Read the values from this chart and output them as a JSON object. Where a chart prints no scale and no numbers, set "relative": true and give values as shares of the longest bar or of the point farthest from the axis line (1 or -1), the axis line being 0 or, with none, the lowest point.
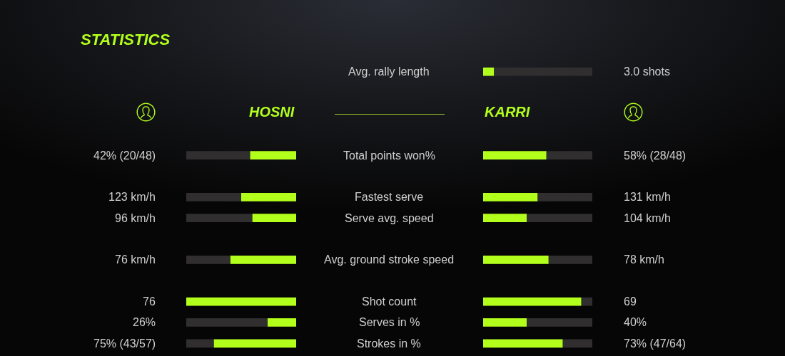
{
  "chart_data": [
    {
      "type": "bar",
      "orientation": "horizontal",
      "stacked": true,
      "relative": true,
      "title": "STATISTICS",
      "tick_labels": "y",
      "categories": [
        "Avg. rally length",
        null,
        null,
        null,
        "Total points won%",
        null,
        "Fastest serve",
        "Serve avg. speed",
        null,
        "Avg. ground stroke speed",
        null,
        "Shot count",
        "Serves in %",
        "Strokes in %"
      ],
      "series": [
        {
          "name": "HOSNI",
          "color": "#b2ff1c",
          "values": [
            null,
            null,
            null,
            null,
            -0.42,
            null,
            -0.5,
            -0.4,
            null,
            -0.6,
            null,
            -1,
            -0.26,
            -0.75
          ]
        },
        {
          "color": "#302e2e",
          "values": [
            null,
            null,
            null,
            null,
            -0.58,
            null,
            -0.5,
            -0.6,
            null,
            -0.4,
            null,
            null,
            -0.74,
            -0.25
          ]
        }
      ],
      "annotations": [
        "42% (20/48)",
        "123 km/h",
        "96 km/h",
        "76 km/h",
        "76",
        "26%",
        "75% (43/57)"
      ]
    },
    {
      "type": "bar",
      "orientation": "horizontal",
      "stacked": true,
      "relative": true,
      "tick_labels": false,
      "categories": [
        null,
        null,
        null,
        null,
        null,
        null,
        null,
        null,
        null,
        null,
        null,
        null,
        null,
        null
      ],
      "series": [
        {
          "name": "KARRI",
          "color": "#b2ff1c",
          "values": [
            0.1,
            null,
            null,
            null,
            0.58,
            null,
            0.5,
            0.4,
            null,
            0.6,
            null,
            0.9,
            0.4,
            0.73
          ]
        },
        {
          "color": "#302e2e",
          "values": [
            0.9,
            null,
            null,
            null,
            0.42,
            null,
            0.5,
            0.6,
            null,
            0.4,
            null,
            0.1,
            0.6,
            0.27
          ]
        }
      ],
      "annotations": [
        "3.0 shots",
        "58% (28/48)",
        "131 km/h",
        "104 km/h",
        "78 km/h",
        "69",
        "40%",
        "73% (47/64)"
      ]
    }
  ]
}
